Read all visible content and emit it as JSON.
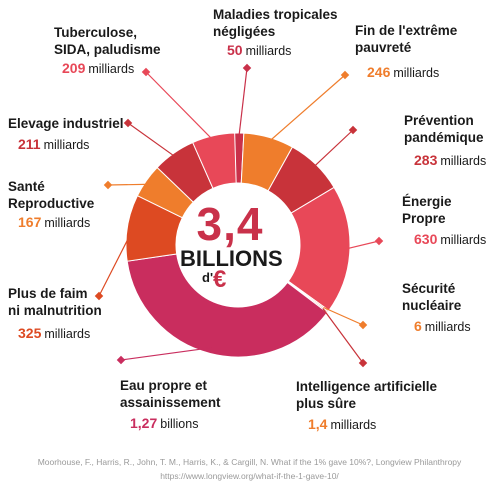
{
  "total": {
    "value": "3,4",
    "unit": "BILLIONS",
    "prefix": "d'",
    "currency": "€"
  },
  "categories": [
    {
      "key": "maladies",
      "name": "Maladies tropicales\nnégligées",
      "value": "50",
      "unit": "milliards",
      "color": "#c9314a"
    },
    {
      "key": "extreme",
      "name": "Fin de l'extrême\npauvreté",
      "value": "246",
      "unit": "milliards",
      "color": "#ef7d2c"
    },
    {
      "key": "pandemique",
      "name": "Prévention\npandémique",
      "value": "283",
      "unit": "milliards",
      "color": "#c8333a"
    },
    {
      "key": "energie",
      "name": "Énergie\nPropre",
      "value": "630",
      "unit": "milliards",
      "color": "#e84858"
    },
    {
      "key": "nucleaire",
      "name": "Sécurité\nnucléaire",
      "value": "6",
      "unit": "milliards",
      "color": "#ef7d2c"
    },
    {
      "key": "ia",
      "name": "Intelligence artificielle\nplus sûre",
      "value": "1,4",
      "unit": "milliards",
      "color": "#c8333a"
    },
    {
      "key": "eau",
      "name": "Eau propre et\nassainissement",
      "value": "1,27",
      "unit": "billions",
      "color": "#c92d5e"
    },
    {
      "key": "faim",
      "name": "Plus de faim\nni malnutrition",
      "value": "325",
      "unit": "milliards",
      "color": "#dd4a22"
    },
    {
      "key": "sante",
      "name": "Santé\nReproductive",
      "value": "167",
      "unit": "milliards",
      "color": "#ef7d2c"
    },
    {
      "key": "elevage",
      "name": "Elevage industriel",
      "value": "211",
      "unit": "milliards",
      "color": "#c8333a"
    },
    {
      "key": "tb",
      "name": "Tuberculose,\nSIDA, paludisme",
      "value": "209",
      "unit": "milliards",
      "color": "#e84858"
    }
  ],
  "source": {
    "line1": "Moorhouse, F., Harris, R., John, T. M., Harris, K., & Cargill, N. What if the 1% gave 10%?, Longview Philanthropy",
    "line2": "https://www.longview.org/what-if-the-1-gave-10/"
  },
  "chart_data": {
    "type": "pie",
    "title": "",
    "units": "milliards d'€",
    "slices": [
      {
        "label": "Maladies tropicales négligées",
        "value": 50
      },
      {
        "label": "Fin de l'extrême pauvreté",
        "value": 246
      },
      {
        "label": "Prévention pandémique",
        "value": 283
      },
      {
        "label": "Énergie Propre",
        "value": 630
      },
      {
        "label": "Sécurité nucléaire",
        "value": 6
      },
      {
        "label": "Intelligence artificielle plus sûre",
        "value": 1.4
      },
      {
        "label": "Eau propre et assainissement",
        "value": 1270
      },
      {
        "label": "Plus de faim ni malnutrition",
        "value": 325
      },
      {
        "label": "Santé Reproductive",
        "value": 167
      },
      {
        "label": "Elevage industriel",
        "value": 211
      },
      {
        "label": "Tuberculose, SIDA, paludisme",
        "value": 209
      }
    ],
    "total_label": "3,4 BILLIONS d'€",
    "legend": "none"
  }
}
